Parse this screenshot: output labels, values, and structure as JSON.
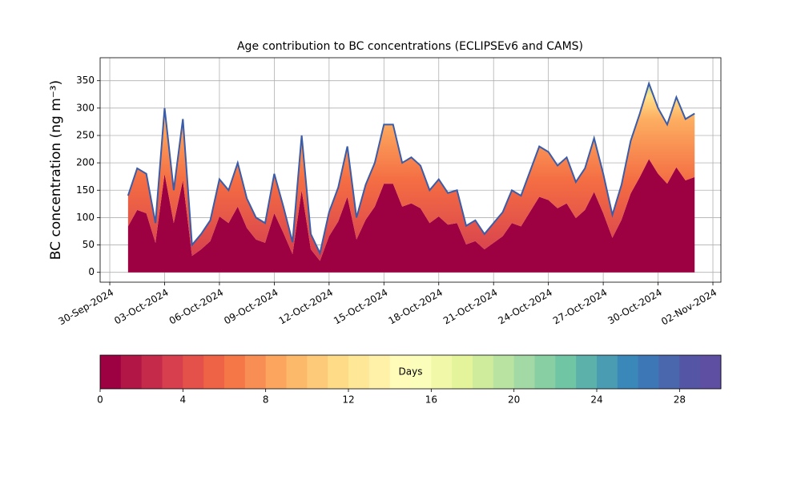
{
  "chart_data": {
    "type": "stacked_area",
    "title": "Age contribution to BC concentrations (ECLIPSEv6 and CAMS)",
    "ylabel": "BC concentration (ng m⁻³)",
    "x": [
      "2024-10-01T00:00",
      "2024-10-01T12:00",
      "2024-10-02T00:00",
      "2024-10-02T12:00",
      "2024-10-03T00:00",
      "2024-10-03T12:00",
      "2024-10-04T00:00",
      "2024-10-04T12:00",
      "2024-10-05T00:00",
      "2024-10-05T12:00",
      "2024-10-06T00:00",
      "2024-10-06T12:00",
      "2024-10-07T00:00",
      "2024-10-07T12:00",
      "2024-10-08T00:00",
      "2024-10-08T12:00",
      "2024-10-09T00:00",
      "2024-10-09T12:00",
      "2024-10-10T00:00",
      "2024-10-10T12:00",
      "2024-10-11T00:00",
      "2024-10-11T12:00",
      "2024-10-12T00:00",
      "2024-10-12T12:00",
      "2024-10-13T00:00",
      "2024-10-13T12:00",
      "2024-10-14T00:00",
      "2024-10-14T12:00",
      "2024-10-15T00:00",
      "2024-10-15T12:00",
      "2024-10-16T00:00",
      "2024-10-16T12:00",
      "2024-10-17T00:00",
      "2024-10-17T12:00",
      "2024-10-18T00:00",
      "2024-10-18T12:00",
      "2024-10-19T00:00",
      "2024-10-19T12:00",
      "2024-10-20T00:00",
      "2024-10-20T12:00",
      "2024-10-21T00:00",
      "2024-10-21T12:00",
      "2024-10-22T00:00",
      "2024-10-22T12:00",
      "2024-10-23T00:00",
      "2024-10-23T12:00",
      "2024-10-24T00:00",
      "2024-10-24T12:00",
      "2024-10-25T00:00",
      "2024-10-25T12:00",
      "2024-10-26T00:00",
      "2024-10-26T12:00",
      "2024-10-27T00:00",
      "2024-10-27T12:00",
      "2024-10-28T00:00",
      "2024-10-28T12:00",
      "2024-10-29T00:00",
      "2024-10-29T12:00",
      "2024-10-30T00:00",
      "2024-10-30T12:00",
      "2024-10-31T00:00",
      "2024-10-31T12:00",
      "2024-11-01T00:00"
    ],
    "series": [
      {
        "color": "#9e0142",
        "values": [
          84,
          114,
          108,
          54,
          180,
          90,
          168,
          30,
          42,
          57,
          102,
          90,
          120,
          81,
          60,
          54,
          108,
          72,
          33,
          150,
          42,
          21,
          66,
          93,
          138,
          60,
          96,
          120,
          162,
          162,
          120,
          126,
          117,
          90,
          102,
          87,
          90,
          51,
          57,
          42,
          54,
          66,
          90,
          84,
          111,
          138,
          132,
          117,
          126,
          99,
          114,
          147,
          108,
          63,
          96,
          144,
          174,
          207,
          180,
          162,
          192,
          168,
          174
        ]
      },
      {
        "color": "#f46d43",
        "values": [
          56,
          76,
          72,
          36,
          120,
          60,
          112,
          20,
          28,
          38,
          68,
          60,
          80,
          54,
          40,
          36,
          72,
          48,
          22,
          100,
          28,
          14,
          44,
          62,
          92,
          40,
          64,
          80,
          108,
          108,
          80,
          84,
          78,
          60,
          68,
          58,
          60,
          34,
          38,
          28,
          36,
          44,
          60,
          56,
          74,
          92,
          88,
          78,
          84,
          66,
          76,
          98,
          72,
          42,
          64,
          96,
          116,
          138,
          120,
          108,
          128,
          112,
          116
        ]
      }
    ],
    "line_color": "#3b5ca8",
    "xlim": [
      "2024-09-29T11:20",
      "2024-11-02T10:30"
    ],
    "xticks": [
      {
        "value": "2024-09-30",
        "label": "30-Sep-2024"
      },
      {
        "value": "2024-10-03",
        "label": "03-Oct-2024"
      },
      {
        "value": "2024-10-06",
        "label": "06-Oct-2024"
      },
      {
        "value": "2024-10-09",
        "label": "09-Oct-2024"
      },
      {
        "value": "2024-10-12",
        "label": "12-Oct-2024"
      },
      {
        "value": "2024-10-15",
        "label": "15-Oct-2024"
      },
      {
        "value": "2024-10-18",
        "label": "18-Oct-2024"
      },
      {
        "value": "2024-10-21",
        "label": "21-Oct-2024"
      },
      {
        "value": "2024-10-24",
        "label": "24-Oct-2024"
      },
      {
        "value": "2024-10-27",
        "label": "27-Oct-2024"
      },
      {
        "value": "2024-10-30",
        "label": "30-Oct-2024"
      },
      {
        "value": "2024-11-02",
        "label": "02-Nov-2024"
      }
    ],
    "ylim": [
      -18,
      392
    ],
    "yticks": [
      0,
      50,
      100,
      150,
      200,
      250,
      300,
      350
    ],
    "grid": true,
    "colorbar": {
      "label": "Days",
      "lim": [
        0,
        30
      ],
      "ticks": [
        0,
        4,
        8,
        12,
        16,
        20,
        24,
        28
      ],
      "colors": [
        "#9e0142",
        "#b11646",
        "#c52a4a",
        "#d73f4e",
        "#e4514a",
        "#ee6245",
        "#f57748",
        "#f88e53",
        "#fba55e",
        "#fdb96a",
        "#fdca79",
        "#fedb87",
        "#fee797",
        "#fff1a8",
        "#fffbb9",
        "#fbfdba",
        "#f1f9a9",
        "#e4f49a",
        "#cfeb9c",
        "#b9e3a0",
        "#a2d9a4",
        "#88cfa4",
        "#70c5a5",
        "#5cb1aa",
        "#4a9cb2",
        "#3a88ba",
        "#3e77b5",
        "#4a66ad",
        "#5555a5",
        "#5e4fa2"
      ]
    }
  }
}
